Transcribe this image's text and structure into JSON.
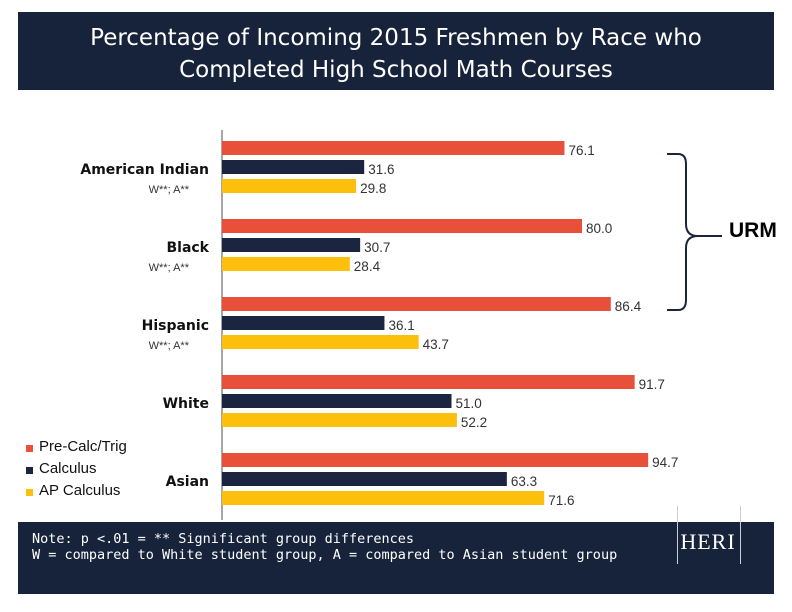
{
  "title_lines": [
    "Percentage of Incoming 2015 Freshmen by Race who",
    "Completed High School Math Courses"
  ],
  "note_lines": [
    "Note: p <.01 = ** Significant group differences",
    "W = compared to White student group, A = compared to Asian student group"
  ],
  "logo_text": "HERI",
  "urm_label": "URM",
  "chart_data": {
    "type": "bar",
    "orientation": "horizontal",
    "categories": [
      "American Indian",
      "Black",
      "Hispanic",
      "White",
      "Asian"
    ],
    "significance": [
      "W**; A**",
      "W**; A**",
      "W**; A**",
      "",
      ""
    ],
    "series": [
      {
        "name": "Pre-Calc/Trig",
        "color": "#e8503a",
        "values": [
          76.1,
          80.0,
          86.4,
          91.7,
          94.7
        ]
      },
      {
        "name": "Calculus",
        "color": "#1b2540",
        "values": [
          31.6,
          30.7,
          36.1,
          51.0,
          63.3
        ]
      },
      {
        "name": "AP Calculus",
        "color": "#fcc00c",
        "values": [
          29.8,
          28.4,
          43.7,
          52.2,
          71.6
        ]
      }
    ],
    "value_labels": [
      [
        "76.1",
        "80.0",
        "86.4",
        "91.7",
        "94.7"
      ],
      [
        "31.6",
        "30.7",
        "36.1",
        "51.0",
        "63.3"
      ],
      [
        "29.8",
        "28.4",
        "43.7",
        "52.2",
        "71.6"
      ]
    ],
    "xlim": [
      0,
      100
    ],
    "grid": false,
    "legend": "bottom-left",
    "urm_bracket_categories": [
      "American Indian",
      "Black",
      "Hispanic"
    ]
  }
}
